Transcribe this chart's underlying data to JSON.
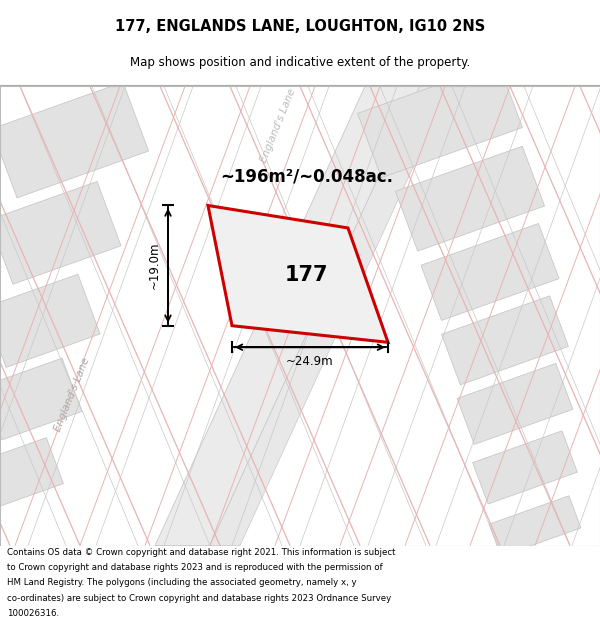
{
  "title": "177, ENGLANDS LANE, LOUGHTON, IG10 2NS",
  "subtitle": "Map shows position and indicative extent of the property.",
  "area_text": "~196m²/~0.048ac.",
  "property_number": "177",
  "dim_width": "~24.9m",
  "dim_height": "~19.0m",
  "road_label_left": "England's Lane",
  "road_label_top": "England's Lane",
  "copyright_lines": [
    "Contains OS data © Crown copyright and database right 2021. This information is subject",
    "to Crown copyright and database rights 2023 and is reproduced with the permission of",
    "HM Land Registry. The polygons (including the associated geometry, namely x, y",
    "co-ordinates) are subject to Crown copyright and database rights 2023 Ordnance Survey",
    "100026316."
  ],
  "bg_color": "#f2f2f2",
  "block_fill": "#e2e2e2",
  "block_edge": "#c8c8c8",
  "road_fill": "#ebebeb",
  "pink_line": "#e8b4b4",
  "gray_line": "#c8c8c8",
  "property_fill": "#f0f0f0",
  "property_edge": "#cc0000",
  "map_border": "#bbbbbb"
}
